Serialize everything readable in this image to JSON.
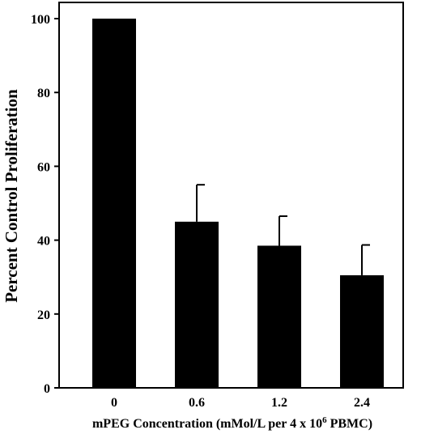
{
  "chart_data": {
    "type": "bar",
    "title": "",
    "xlabel": "mPEG Concentration (mMol/L per 4 x 10",
    "xlabel_superscript": "6",
    "xlabel_suffix": " PBMC)",
    "ylabel": "Percent Control Proliferation",
    "categories": [
      "0",
      "0.6",
      "1.2",
      "2.4"
    ],
    "values": [
      100,
      45,
      38.5,
      30.5
    ],
    "error_upper": [
      0,
      10,
      8,
      8.2
    ],
    "ylim": [
      0,
      105
    ],
    "yticks": [
      0,
      20,
      40,
      60,
      80,
      100
    ],
    "grid": false,
    "legend": "none",
    "bar_color": "#000000"
  }
}
